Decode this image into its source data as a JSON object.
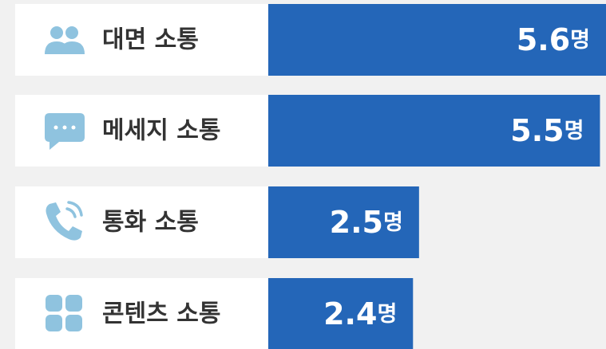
{
  "chart_data": {
    "type": "hbar",
    "categories": [
      "대면 소통",
      "메세지 소통",
      "통화 소통",
      "콘텐츠 소통"
    ],
    "values": [
      5.6,
      5.5,
      2.5,
      2.4
    ],
    "unit": "명",
    "color": "#2466b8"
  }
}
